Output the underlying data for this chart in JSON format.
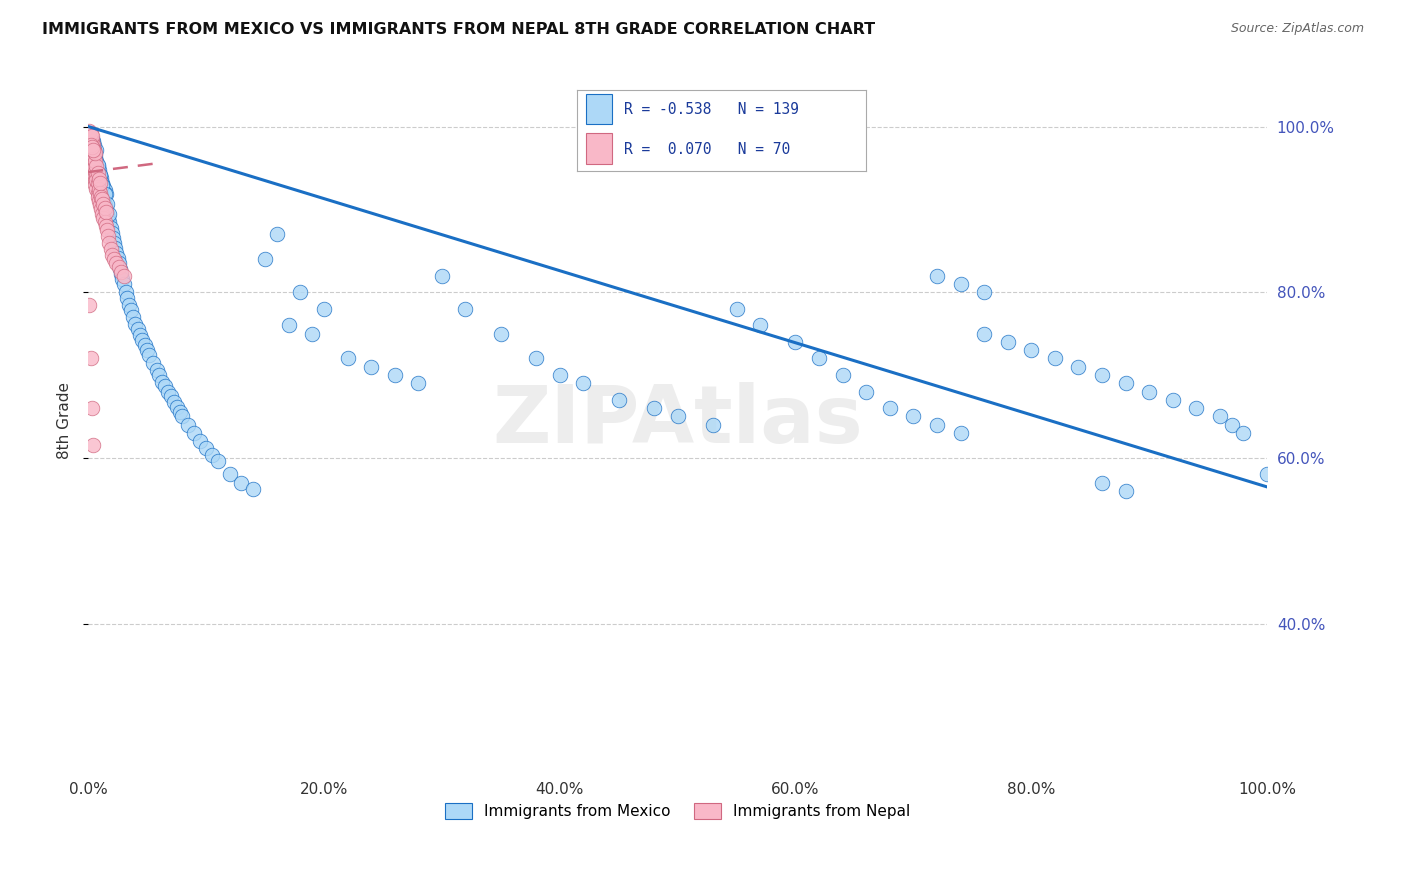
{
  "title": "IMMIGRANTS FROM MEXICO VS IMMIGRANTS FROM NEPAL 8TH GRADE CORRELATION CHART",
  "source": "Source: ZipAtlas.com",
  "ylabel": "8th Grade",
  "legend_mexico": "Immigrants from Mexico",
  "legend_nepal": "Immigrants from Nepal",
  "R_mexico": -0.538,
  "N_mexico": 139,
  "R_nepal": 0.07,
  "N_nepal": 70,
  "color_mexico": "#add8f7",
  "color_nepal": "#f9b8c8",
  "line_mexico": "#1a6fc4",
  "line_nepal": "#d06880",
  "trendline_mexico_x0": 0.0,
  "trendline_mexico_y0": 1.0,
  "trendline_mexico_x1": 1.0,
  "trendline_mexico_y1": 0.565,
  "trendline_nepal_x0": 0.0,
  "trendline_nepal_y0": 0.945,
  "trendline_nepal_x1": 0.055,
  "trendline_nepal_y1": 0.955,
  "xlim": [
    0.0,
    1.0
  ],
  "ylim": [
    0.22,
    1.07
  ],
  "yticks": [
    0.4,
    0.6,
    0.8,
    1.0
  ],
  "ytick_labels": [
    "40.0%",
    "60.0%",
    "80.0%",
    "100.0%"
  ],
  "xticks": [
    0.0,
    0.2,
    0.4,
    0.6,
    0.8,
    1.0
  ],
  "xtick_labels": [
    "0.0%",
    "20.0%",
    "40.0%",
    "60.0%",
    "80.0%",
    "100.0%"
  ],
  "mexico_x": [
    0.001,
    0.002,
    0.002,
    0.003,
    0.003,
    0.003,
    0.004,
    0.004,
    0.004,
    0.005,
    0.005,
    0.005,
    0.006,
    0.006,
    0.007,
    0.007,
    0.007,
    0.008,
    0.008,
    0.009,
    0.009,
    0.01,
    0.01,
    0.011,
    0.011,
    0.012,
    0.012,
    0.013,
    0.013,
    0.014,
    0.014,
    0.015,
    0.015,
    0.016,
    0.017,
    0.018,
    0.019,
    0.02,
    0.021,
    0.022,
    0.023,
    0.024,
    0.025,
    0.026,
    0.027,
    0.028,
    0.029,
    0.03,
    0.032,
    0.033,
    0.035,
    0.036,
    0.038,
    0.04,
    0.042,
    0.044,
    0.046,
    0.048,
    0.05,
    0.052,
    0.055,
    0.058,
    0.06,
    0.063,
    0.065,
    0.068,
    0.07,
    0.073,
    0.075,
    0.078,
    0.08,
    0.085,
    0.09,
    0.095,
    0.1,
    0.105,
    0.11,
    0.12,
    0.13,
    0.14,
    0.15,
    0.16,
    0.17,
    0.18,
    0.19,
    0.2,
    0.22,
    0.24,
    0.26,
    0.28,
    0.3,
    0.32,
    0.35,
    0.38,
    0.4,
    0.42,
    0.45,
    0.48,
    0.5,
    0.53,
    0.55,
    0.57,
    0.6,
    0.62,
    0.64,
    0.66,
    0.68,
    0.7,
    0.72,
    0.74,
    0.76,
    0.78,
    0.8,
    0.82,
    0.84,
    0.86,
    0.88,
    0.9,
    0.92,
    0.94,
    0.96,
    0.97,
    0.98,
    1.0,
    0.72,
    0.74,
    0.76,
    0.86,
    0.88,
    0.003,
    0.004,
    0.005,
    0.006,
    0.008,
    0.01,
    0.012,
    0.014,
    0.016,
    0.018
  ],
  "mexico_y": [
    0.975,
    0.98,
    0.99,
    0.96,
    0.975,
    0.985,
    0.955,
    0.97,
    0.982,
    0.95,
    0.965,
    0.978,
    0.945,
    0.962,
    0.94,
    0.958,
    0.972,
    0.935,
    0.952,
    0.93,
    0.948,
    0.925,
    0.942,
    0.92,
    0.938,
    0.915,
    0.932,
    0.91,
    0.928,
    0.905,
    0.923,
    0.9,
    0.918,
    0.895,
    0.89,
    0.885,
    0.878,
    0.872,
    0.866,
    0.86,
    0.853,
    0.847,
    0.841,
    0.835,
    0.828,
    0.822,
    0.816,
    0.81,
    0.8,
    0.793,
    0.785,
    0.778,
    0.77,
    0.762,
    0.755,
    0.748,
    0.742,
    0.736,
    0.73,
    0.724,
    0.715,
    0.706,
    0.7,
    0.692,
    0.687,
    0.68,
    0.675,
    0.668,
    0.662,
    0.656,
    0.65,
    0.64,
    0.63,
    0.62,
    0.612,
    0.604,
    0.596,
    0.58,
    0.57,
    0.562,
    0.84,
    0.87,
    0.76,
    0.8,
    0.75,
    0.78,
    0.72,
    0.71,
    0.7,
    0.69,
    0.82,
    0.78,
    0.75,
    0.72,
    0.7,
    0.69,
    0.67,
    0.66,
    0.65,
    0.64,
    0.78,
    0.76,
    0.74,
    0.72,
    0.7,
    0.68,
    0.66,
    0.65,
    0.64,
    0.63,
    0.75,
    0.74,
    0.73,
    0.72,
    0.71,
    0.7,
    0.69,
    0.68,
    0.67,
    0.66,
    0.65,
    0.64,
    0.63,
    0.58,
    0.82,
    0.81,
    0.8,
    0.57,
    0.56,
    0.985,
    0.978,
    0.972,
    0.966,
    0.954,
    0.942,
    0.93,
    0.918,
    0.906,
    0.894
  ],
  "nepal_x": [
    0.001,
    0.001,
    0.002,
    0.002,
    0.002,
    0.003,
    0.003,
    0.003,
    0.003,
    0.004,
    0.004,
    0.004,
    0.004,
    0.005,
    0.005,
    0.005,
    0.005,
    0.006,
    0.006,
    0.006,
    0.006,
    0.007,
    0.007,
    0.007,
    0.007,
    0.008,
    0.008,
    0.008,
    0.008,
    0.009,
    0.009,
    0.009,
    0.01,
    0.01,
    0.01,
    0.011,
    0.011,
    0.012,
    0.012,
    0.013,
    0.013,
    0.014,
    0.014,
    0.015,
    0.015,
    0.016,
    0.017,
    0.018,
    0.019,
    0.02,
    0.022,
    0.024,
    0.026,
    0.028,
    0.03,
    0.002,
    0.003,
    0.004,
    0.005,
    0.006,
    0.001,
    0.002,
    0.003,
    0.002,
    0.003,
    0.004,
    0.001,
    0.002,
    0.003,
    0.004
  ],
  "nepal_y": [
    0.97,
    0.98,
    0.96,
    0.975,
    0.985,
    0.955,
    0.965,
    0.972,
    0.958,
    0.95,
    0.962,
    0.97,
    0.945,
    0.955,
    0.965,
    0.94,
    0.95,
    0.935,
    0.945,
    0.958,
    0.93,
    0.94,
    0.952,
    0.925,
    0.935,
    0.92,
    0.932,
    0.944,
    0.915,
    0.925,
    0.937,
    0.91,
    0.92,
    0.932,
    0.905,
    0.915,
    0.9,
    0.912,
    0.895,
    0.907,
    0.89,
    0.902,
    0.885,
    0.897,
    0.88,
    0.875,
    0.868,
    0.86,
    0.852,
    0.845,
    0.84,
    0.835,
    0.83,
    0.825,
    0.82,
    0.988,
    0.982,
    0.978,
    0.972,
    0.968,
    0.995,
    0.992,
    0.988,
    0.978,
    0.975,
    0.972,
    0.785,
    0.72,
    0.66,
    0.615
  ]
}
